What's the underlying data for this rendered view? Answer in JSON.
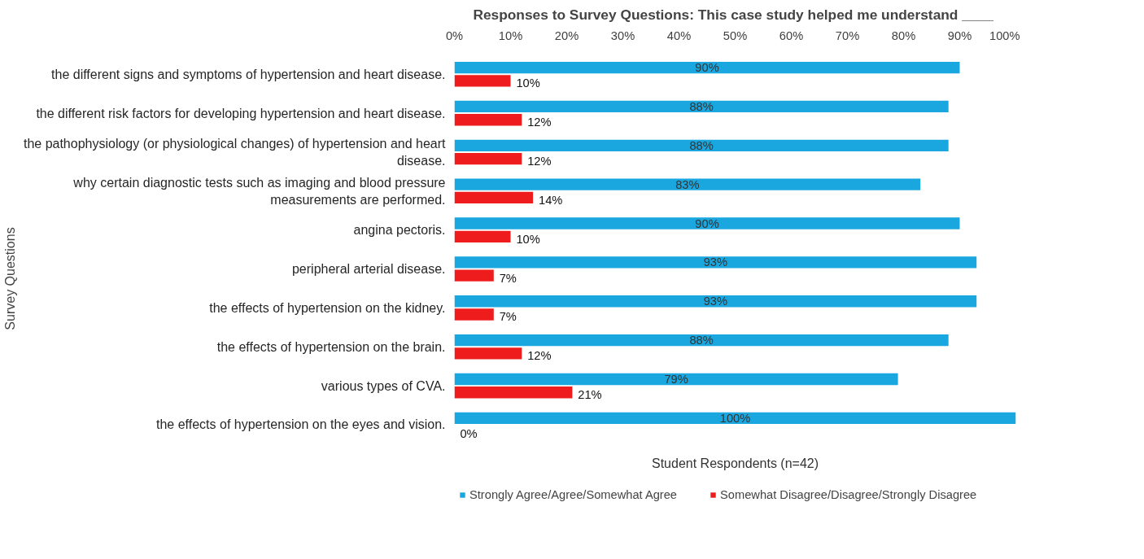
{
  "chart_data": {
    "type": "bar",
    "orientation": "horizontal",
    "title": "Responses to Survey Questions:  This case study helped me understand ____",
    "xlabel": "Student Respondents (n=42)",
    "ylabel": "Survey Questions",
    "categories": [
      "the different signs and symptoms of hypertension and heart disease.",
      "the different risk factors for developing hypertension and heart disease.",
      "the pathophysiology (or physiological changes) of hypertension and heart disease.",
      "why certain diagnostic tests such as imaging and blood pressure measurements are performed.",
      "angina pectoris.",
      "peripheral arterial disease.",
      "the effects of hypertension on the kidney.",
      "the effects of hypertension on the brain.",
      "various types of CVA.",
      "the effects of hypertension on the eyes and vision."
    ],
    "series": [
      {
        "name": "Strongly Agree/Agree/Somewhat Agree",
        "color": "#1aa7e0",
        "values": [
          90,
          88,
          88,
          83,
          90,
          93,
          93,
          88,
          79,
          100
        ],
        "value_labels": [
          "90%",
          "88%",
          "88%",
          "83%",
          "90%",
          "93%",
          "93%",
          "88%",
          "79%",
          "100%"
        ]
      },
      {
        "name": "Somewhat Disagree/Disagree/Strongly Disagree",
        "color": "#ee1c1c",
        "values": [
          10,
          12,
          12,
          14,
          10,
          7,
          7,
          12,
          21,
          0
        ],
        "value_labels": [
          "10%",
          "12%",
          "12%",
          "14%",
          "10%",
          "7%",
          "7%",
          "12%",
          "21%",
          "0%"
        ]
      }
    ],
    "xlim": [
      0,
      100
    ],
    "xticks": [
      {
        "value": 0,
        "label": "0%"
      },
      {
        "value": 10,
        "label": "10%"
      },
      {
        "value": 20,
        "label": "20%"
      },
      {
        "value": 30,
        "label": "30%"
      },
      {
        "value": 40,
        "label": "40%"
      },
      {
        "value": 50,
        "label": "50%"
      },
      {
        "value": 60,
        "label": "60%"
      },
      {
        "value": 70,
        "label": "70%"
      },
      {
        "value": 80,
        "label": "80%"
      },
      {
        "value": 90,
        "label": "90%"
      },
      {
        "value": 100,
        "label": "100%"
      }
    ],
    "grid": false,
    "legend": "bottom"
  }
}
